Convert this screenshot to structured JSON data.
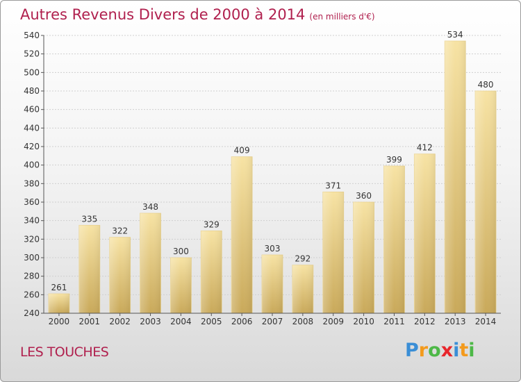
{
  "header": {
    "title": "Autres Revenus Divers de 2000 à 2014",
    "unit": "(en milliers d'€)"
  },
  "footer": {
    "commune": "LES TOUCHES",
    "logo_letters": [
      "P",
      "r",
      "o",
      "x",
      "i",
      "t",
      "i"
    ],
    "logo_colors": [
      "#3a8ed6",
      "#f39a1c",
      "#4db847",
      "#e8262c",
      "#3a8ed6",
      "#f39a1c",
      "#4db847"
    ]
  },
  "colors": {
    "title": "#b0204e",
    "bar_light": "#f7e3a4",
    "bar_dark": "#c9a95a"
  },
  "chart_data": {
    "type": "bar",
    "categories": [
      "2000",
      "2001",
      "2002",
      "2003",
      "2004",
      "2005",
      "2006",
      "2007",
      "2008",
      "2009",
      "2010",
      "2011",
      "2012",
      "2013",
      "2014"
    ],
    "values": [
      261,
      335,
      322,
      348,
      300,
      329,
      409,
      303,
      292,
      371,
      360,
      399,
      412,
      534,
      480
    ],
    "ylim": [
      240,
      540
    ],
    "yticks": [
      240,
      260,
      280,
      300,
      320,
      340,
      360,
      380,
      400,
      420,
      440,
      460,
      480,
      500,
      520,
      540
    ],
    "grid": true
  }
}
